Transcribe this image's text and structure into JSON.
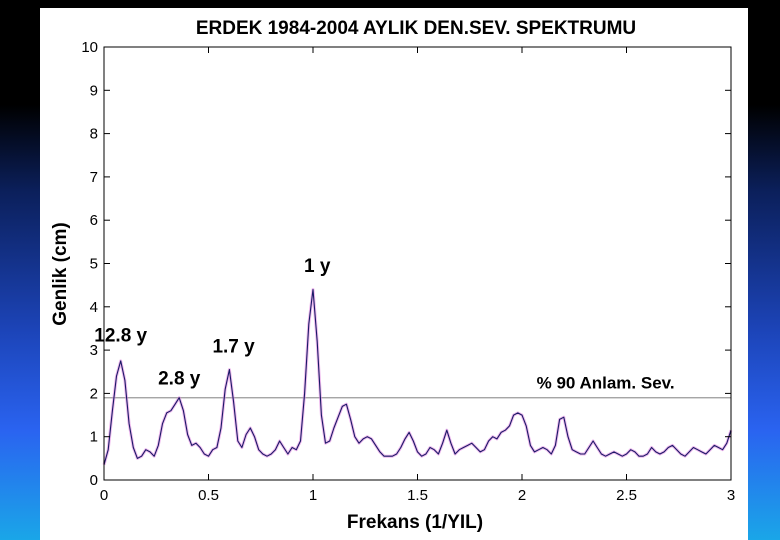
{
  "chart_data": {
    "type": "line",
    "title": "ERDEK 1984-2004 AYLIK DEN.SEV. SPEKTRUMU",
    "xlabel": "Frekans (1/YIL)",
    "ylabel": "Genlik (cm)",
    "xlim": [
      0,
      3
    ],
    "ylim": [
      0,
      10
    ],
    "xticks": [
      0,
      0.5,
      1,
      1.5,
      2,
      2.5,
      3
    ],
    "xtick_labels": [
      "0",
      "0.5",
      "1",
      "1.5",
      "2",
      "2.5",
      "3"
    ],
    "yticks": [
      0,
      1,
      2,
      3,
      4,
      5,
      6,
      7,
      8,
      9,
      10
    ],
    "ytick_labels": [
      "0",
      "1",
      "2",
      "3",
      "4",
      "5",
      "6",
      "7",
      "8",
      "9",
      "10"
    ],
    "grid": false,
    "series": [
      {
        "color": "#1a1a66",
        "band_color": "#e080e0",
        "x": [
          0,
          0.02,
          0.04,
          0.06,
          0.08,
          0.1,
          0.12,
          0.14,
          0.16,
          0.18,
          0.2,
          0.22,
          0.24,
          0.26,
          0.28,
          0.3,
          0.32,
          0.34,
          0.36,
          0.38,
          0.4,
          0.42,
          0.44,
          0.46,
          0.48,
          0.5,
          0.52,
          0.54,
          0.56,
          0.58,
          0.6,
          0.62,
          0.64,
          0.66,
          0.68,
          0.7,
          0.72,
          0.74,
          0.76,
          0.78,
          0.8,
          0.82,
          0.84,
          0.86,
          0.88,
          0.9,
          0.92,
          0.94,
          0.96,
          0.98,
          1.0,
          1.02,
          1.04,
          1.06,
          1.08,
          1.1,
          1.12,
          1.14,
          1.16,
          1.18,
          1.2,
          1.22,
          1.24,
          1.26,
          1.28,
          1.3,
          1.32,
          1.34,
          1.36,
          1.38,
          1.4,
          1.42,
          1.44,
          1.46,
          1.48,
          1.5,
          1.52,
          1.54,
          1.56,
          1.58,
          1.6,
          1.62,
          1.64,
          1.66,
          1.68,
          1.7,
          1.72,
          1.74,
          1.76,
          1.78,
          1.8,
          1.82,
          1.84,
          1.86,
          1.88,
          1.9,
          1.92,
          1.94,
          1.96,
          1.98,
          2.0,
          2.02,
          2.04,
          2.06,
          2.08,
          2.1,
          2.12,
          2.14,
          2.16,
          2.18,
          2.2,
          2.22,
          2.24,
          2.26,
          2.28,
          2.3,
          2.32,
          2.34,
          2.36,
          2.38,
          2.4,
          2.42,
          2.44,
          2.46,
          2.48,
          2.5,
          2.52,
          2.54,
          2.56,
          2.58,
          2.6,
          2.62,
          2.64,
          2.66,
          2.68,
          2.7,
          2.72,
          2.74,
          2.76,
          2.78,
          2.8,
          2.82,
          2.84,
          2.86,
          2.88,
          2.9,
          2.92,
          2.94,
          2.96,
          2.98,
          3.0
        ],
        "values": [
          0.35,
          0.7,
          1.6,
          2.4,
          2.75,
          2.3,
          1.3,
          0.75,
          0.5,
          0.55,
          0.7,
          0.65,
          0.55,
          0.8,
          1.3,
          1.55,
          1.6,
          1.75,
          1.9,
          1.6,
          1.05,
          0.8,
          0.85,
          0.75,
          0.6,
          0.55,
          0.7,
          0.75,
          1.2,
          2.1,
          2.55,
          1.8,
          0.9,
          0.75,
          1.05,
          1.2,
          1.0,
          0.7,
          0.6,
          0.55,
          0.6,
          0.7,
          0.9,
          0.75,
          0.6,
          0.75,
          0.7,
          0.9,
          2.0,
          3.6,
          4.4,
          3.2,
          1.5,
          0.85,
          0.9,
          1.2,
          1.45,
          1.7,
          1.75,
          1.4,
          1.0,
          0.85,
          0.95,
          1.0,
          0.95,
          0.8,
          0.65,
          0.55,
          0.55,
          0.55,
          0.6,
          0.75,
          0.95,
          1.1,
          0.9,
          0.65,
          0.55,
          0.6,
          0.75,
          0.7,
          0.6,
          0.85,
          1.15,
          0.85,
          0.6,
          0.7,
          0.75,
          0.8,
          0.85,
          0.75,
          0.65,
          0.7,
          0.9,
          1.0,
          0.95,
          1.1,
          1.15,
          1.25,
          1.5,
          1.55,
          1.5,
          1.25,
          0.8,
          0.65,
          0.7,
          0.75,
          0.7,
          0.6,
          0.8,
          1.4,
          1.45,
          1.0,
          0.7,
          0.65,
          0.6,
          0.6,
          0.75,
          0.9,
          0.75,
          0.6,
          0.55,
          0.6,
          0.65,
          0.6,
          0.55,
          0.6,
          0.7,
          0.65,
          0.55,
          0.55,
          0.6,
          0.75,
          0.65,
          0.6,
          0.65,
          0.75,
          0.8,
          0.7,
          0.6,
          0.55,
          0.65,
          0.75,
          0.7,
          0.65,
          0.6,
          0.7,
          0.8,
          0.75,
          0.7,
          0.85,
          1.15
        ]
      }
    ],
    "threshold": {
      "value": 1.9,
      "label": "% 90 Anlam. Sev."
    },
    "annotations": [
      {
        "text": "12.8 y",
        "x": 0.08,
        "y": 3.2
      },
      {
        "text": "2.8 y",
        "x": 0.36,
        "y": 2.2
      },
      {
        "text": "1.7 y",
        "x": 0.62,
        "y": 2.95
      },
      {
        "text": "1 y",
        "x": 1.02,
        "y": 4.8
      }
    ]
  }
}
